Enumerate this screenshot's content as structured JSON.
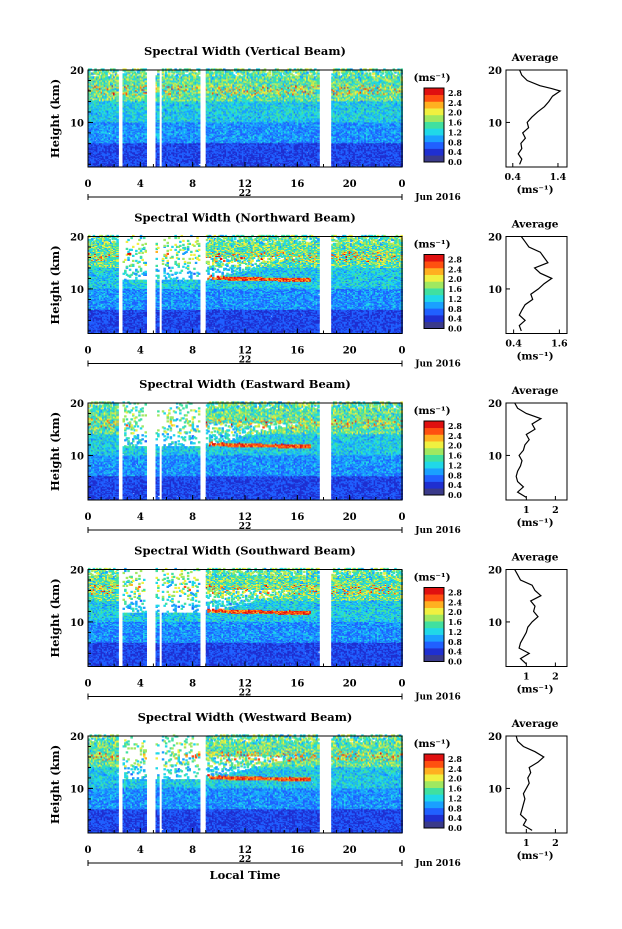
{
  "chart_data": {
    "type": "heatmap",
    "xlabel": "Local Time",
    "xticks": [
      "0",
      "4",
      "8",
      "12",
      "16",
      "20",
      "0"
    ],
    "xlim_hours": [
      0,
      24
    ],
    "day_label": "22",
    "date_label": "Jun 2016",
    "ylabel": "Height (km)",
    "ylim_km": [
      1.5,
      20
    ],
    "yticks": [
      "20",
      "10"
    ],
    "colorbar": {
      "unit": "(ms⁻¹)",
      "ticks": [
        "2.8",
        "2.4",
        "2.0",
        "1.6",
        "1.2",
        "0.8",
        "0.4",
        "0.0"
      ],
      "range": [
        0,
        3.0
      ],
      "colors": [
        "#3a3a8a",
        "#1f2fd0",
        "#2060ff",
        "#1aa0ff",
        "#20d8e8",
        "#40e0a0",
        "#a0e860",
        "#f0f040",
        "#ffb020",
        "#ff5010",
        "#e01010"
      ]
    },
    "gaps_hours": [
      [
        2.2,
        2.6
      ],
      [
        4.4,
        5.1
      ],
      [
        5.4,
        5.6
      ],
      [
        8.5,
        8.9
      ],
      [
        17.6,
        18.5
      ]
    ],
    "profile_title": "Average",
    "profile_unit": "(ms⁻¹)",
    "panels": [
      {
        "title": "Spectral Width (Vertical Beam)",
        "profile_xticks": [
          "0.4",
          "1.4"
        ],
        "profile_xlim": [
          0.25,
          1.6
        ],
        "profile": [
          [
            0.55,
            2
          ],
          [
            0.6,
            3
          ],
          [
            0.52,
            4
          ],
          [
            0.6,
            5
          ],
          [
            0.58,
            6
          ],
          [
            0.68,
            7
          ],
          [
            0.62,
            8
          ],
          [
            0.75,
            9
          ],
          [
            0.72,
            10
          ],
          [
            0.82,
            11
          ],
          [
            0.95,
            12
          ],
          [
            1.1,
            13
          ],
          [
            1.2,
            14
          ],
          [
            1.28,
            15
          ],
          [
            1.45,
            16
          ],
          [
            1.25,
            16.5
          ],
          [
            1.0,
            17
          ],
          [
            0.72,
            18
          ],
          [
            0.6,
            19
          ],
          [
            0.55,
            20
          ]
        ]
      },
      {
        "title": "Spectral Width (Northward Beam)",
        "profile_xticks": [
          "0.4",
          "1.6"
        ],
        "profile_xlim": [
          0.2,
          1.8
        ],
        "profile": [
          [
            0.6,
            2
          ],
          [
            0.55,
            3
          ],
          [
            0.7,
            4
          ],
          [
            0.55,
            5
          ],
          [
            0.62,
            6
          ],
          [
            0.7,
            7
          ],
          [
            0.9,
            8
          ],
          [
            0.85,
            9
          ],
          [
            1.05,
            10
          ],
          [
            1.2,
            11
          ],
          [
            1.4,
            12
          ],
          [
            1.1,
            13
          ],
          [
            0.95,
            14
          ],
          [
            1.3,
            15
          ],
          [
            1.2,
            16
          ],
          [
            1.1,
            17
          ],
          [
            0.8,
            18
          ],
          [
            0.7,
            19
          ],
          [
            0.6,
            20
          ]
        ]
      },
      {
        "title": "Spectral Width (Eastward Beam)",
        "profile_xticks": [
          "1",
          "2"
        ],
        "profile_xlim": [
          0.3,
          2.4
        ],
        "profile": [
          [
            1.0,
            2
          ],
          [
            0.7,
            3
          ],
          [
            0.9,
            4
          ],
          [
            0.7,
            5
          ],
          [
            0.65,
            6
          ],
          [
            0.7,
            7
          ],
          [
            0.8,
            8
          ],
          [
            0.85,
            9
          ],
          [
            0.75,
            10
          ],
          [
            0.9,
            11
          ],
          [
            0.95,
            12
          ],
          [
            1.1,
            13
          ],
          [
            1.0,
            14
          ],
          [
            1.3,
            15
          ],
          [
            1.2,
            16
          ],
          [
            1.5,
            17
          ],
          [
            1.0,
            18
          ],
          [
            0.7,
            19
          ],
          [
            0.6,
            20
          ]
        ]
      },
      {
        "title": "Spectral Width (Southward Beam)",
        "profile_xticks": [
          "1",
          "2"
        ],
        "profile_xlim": [
          0.3,
          2.4
        ],
        "profile": [
          [
            1.0,
            2
          ],
          [
            0.8,
            3
          ],
          [
            1.1,
            4
          ],
          [
            0.75,
            5
          ],
          [
            0.8,
            6
          ],
          [
            0.9,
            7
          ],
          [
            1.0,
            8
          ],
          [
            1.05,
            9
          ],
          [
            1.2,
            10
          ],
          [
            1.4,
            11
          ],
          [
            1.25,
            12
          ],
          [
            1.3,
            13
          ],
          [
            1.15,
            14
          ],
          [
            1.5,
            15
          ],
          [
            1.3,
            16
          ],
          [
            1.2,
            17
          ],
          [
            0.8,
            18
          ],
          [
            0.7,
            19
          ],
          [
            0.6,
            20
          ]
        ]
      },
      {
        "title": "Spectral Width (Westward Beam)",
        "profile_xticks": [
          "1",
          "2"
        ],
        "profile_xlim": [
          0.3,
          2.4
        ],
        "profile": [
          [
            1.2,
            2
          ],
          [
            0.9,
            3
          ],
          [
            1.0,
            4
          ],
          [
            0.8,
            5
          ],
          [
            0.85,
            6
          ],
          [
            0.9,
            7
          ],
          [
            0.95,
            8
          ],
          [
            0.9,
            9
          ],
          [
            1.0,
            10
          ],
          [
            1.1,
            11
          ],
          [
            1.05,
            12
          ],
          [
            1.15,
            13
          ],
          [
            1.1,
            14
          ],
          [
            1.4,
            15
          ],
          [
            1.6,
            16
          ],
          [
            1.3,
            17
          ],
          [
            0.9,
            18
          ],
          [
            0.7,
            19
          ],
          [
            0.65,
            20
          ]
        ]
      }
    ]
  }
}
